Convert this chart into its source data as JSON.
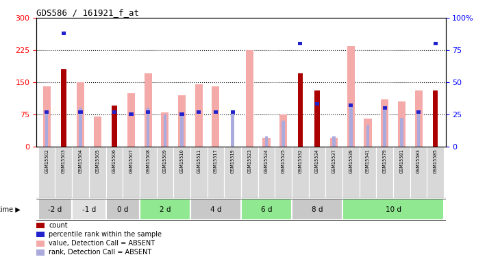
{
  "title": "GDS586 / 161921_f_at",
  "samples": [
    "GSM15502",
    "GSM15503",
    "GSM15504",
    "GSM15505",
    "GSM15506",
    "GSM15507",
    "GSM15508",
    "GSM15509",
    "GSM15510",
    "GSM15511",
    "GSM15517",
    "GSM15519",
    "GSM15523",
    "GSM15524",
    "GSM15525",
    "GSM15532",
    "GSM15534",
    "GSM15537",
    "GSM15539",
    "GSM15541",
    "GSM15579",
    "GSM15581",
    "GSM15583",
    "GSM15585"
  ],
  "count_values": [
    0,
    180,
    0,
    0,
    95,
    0,
    0,
    0,
    0,
    0,
    0,
    0,
    0,
    0,
    0,
    170,
    130,
    0,
    0,
    0,
    0,
    0,
    0,
    130
  ],
  "percentile_values": [
    27,
    88,
    27,
    0,
    27,
    25,
    27,
    0,
    25,
    27,
    27,
    27,
    0,
    0,
    0,
    80,
    33,
    0,
    32,
    0,
    30,
    0,
    27,
    80
  ],
  "pink_values": [
    140,
    0,
    150,
    70,
    0,
    125,
    170,
    80,
    120,
    145,
    140,
    0,
    225,
    20,
    75,
    0,
    0,
    20,
    235,
    65,
    110,
    105,
    130,
    0
  ],
  "lightblue_values": [
    27,
    0,
    30,
    0,
    0,
    0,
    30,
    25,
    25,
    0,
    0,
    27,
    0,
    8,
    20,
    0,
    0,
    8,
    32,
    17,
    30,
    22,
    27,
    0
  ],
  "time_groups": [
    {
      "label": "-2 d",
      "start": 0,
      "end": 2,
      "color": "#c8c8c8"
    },
    {
      "label": "-1 d",
      "start": 2,
      "end": 4,
      "color": "#e0e0e0"
    },
    {
      "label": "0 d",
      "start": 4,
      "end": 6,
      "color": "#c8c8c8"
    },
    {
      "label": "2 d",
      "start": 6,
      "end": 9,
      "color": "#90e890"
    },
    {
      "label": "4 d",
      "start": 9,
      "end": 12,
      "color": "#c8c8c8"
    },
    {
      "label": "6 d",
      "start": 12,
      "end": 15,
      "color": "#90e890"
    },
    {
      "label": "8 d",
      "start": 15,
      "end": 18,
      "color": "#c8c8c8"
    },
    {
      "label": "10 d",
      "start": 18,
      "end": 24,
      "color": "#90e890"
    }
  ],
  "sample_bg_color": "#d8d8d8",
  "ylim_left": [
    0,
    300
  ],
  "ylim_right": [
    0,
    100
  ],
  "yticks_left": [
    0,
    75,
    150,
    225,
    300
  ],
  "yticks_right": [
    0,
    25,
    50,
    75,
    100
  ],
  "hlines": [
    75,
    150,
    225
  ],
  "color_count": "#aa0000",
  "color_percentile": "#2222cc",
  "color_pink": "#f5aaaa",
  "color_lightblue": "#aaaadd",
  "legend_items": [
    {
      "color": "#aa0000",
      "label": "count"
    },
    {
      "color": "#2222cc",
      "label": "percentile rank within the sample"
    },
    {
      "color": "#f5aaaa",
      "label": "value, Detection Call = ABSENT"
    },
    {
      "color": "#aaaadd",
      "label": "rank, Detection Call = ABSENT"
    }
  ]
}
